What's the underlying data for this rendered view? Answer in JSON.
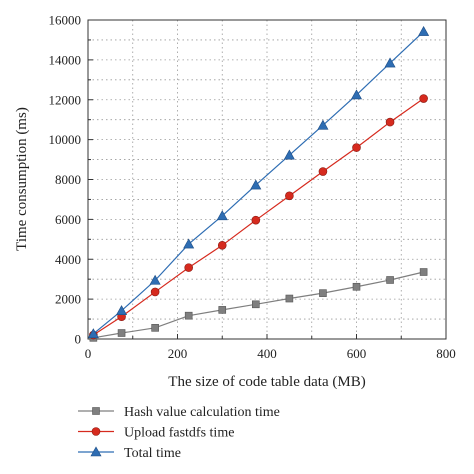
{
  "chart_data": {
    "type": "line",
    "xlabel": "The size of code table data (MB)",
    "ylabel": "Time consumption (ms)",
    "xlim": [
      0,
      800
    ],
    "ylim": [
      0,
      16000
    ],
    "x_ticks": [
      0,
      200,
      400,
      600,
      800
    ],
    "y_ticks": [
      0,
      2000,
      4000,
      6000,
      8000,
      10000,
      12000,
      14000,
      16000
    ],
    "grid": true,
    "legend_position": "bottom",
    "series": [
      {
        "name": "Hash value calculation time",
        "marker": "square",
        "color": "#7f7f7f",
        "x": [
          12,
          75,
          150,
          225,
          300,
          375,
          450,
          525,
          600,
          675,
          750
        ],
        "values": [
          60,
          300,
          560,
          1170,
          1460,
          1740,
          2030,
          2300,
          2620,
          2960,
          3360
        ]
      },
      {
        "name": "Upload fastdfs time",
        "marker": "circle",
        "color": "#d62a1e",
        "x": [
          12,
          75,
          150,
          225,
          300,
          375,
          450,
          525,
          600,
          675,
          750
        ],
        "values": [
          200,
          1120,
          2360,
          3580,
          4700,
          5960,
          7180,
          8400,
          9600,
          10880,
          12060
        ]
      },
      {
        "name": "Total time",
        "marker": "triangle",
        "color": "#2e6db3",
        "x": [
          12,
          75,
          150,
          225,
          300,
          375,
          450,
          525,
          600,
          675,
          750
        ],
        "values": [
          260,
          1420,
          2940,
          4760,
          6180,
          7720,
          9220,
          10720,
          12240,
          13840,
          15420
        ]
      }
    ]
  }
}
